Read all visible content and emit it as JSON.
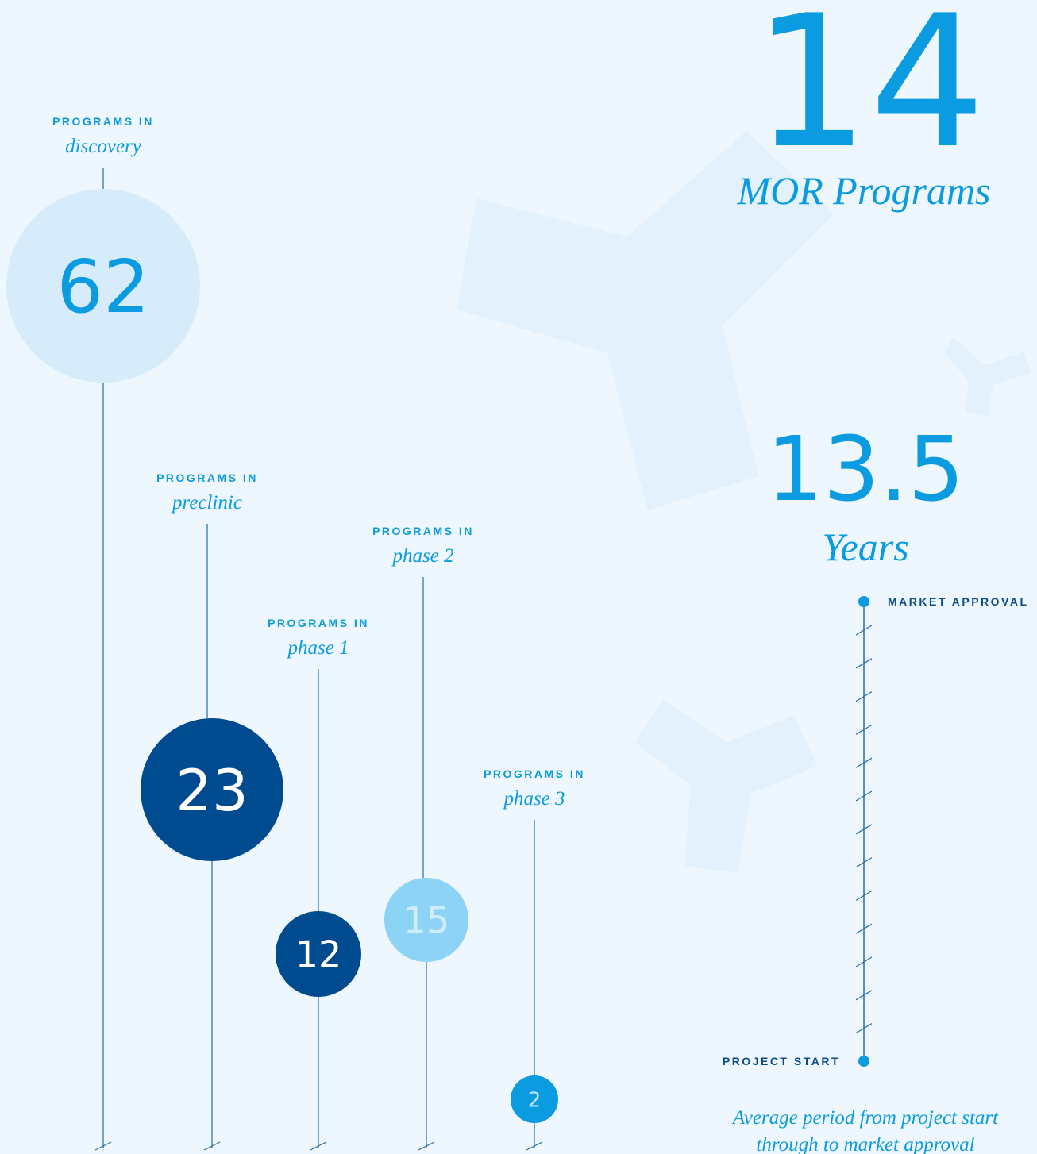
{
  "hero": {
    "count": 14,
    "count_label": "MOR Programs",
    "years": 13.5,
    "years_label": "Years"
  },
  "stages": [
    {
      "prefix": "PROGRAMS IN",
      "name": "discovery",
      "count": 62
    },
    {
      "prefix": "PROGRAMS IN",
      "name": "preclinic",
      "count": 23
    },
    {
      "prefix": "PROGRAMS IN",
      "name": "phase 1",
      "count": 12
    },
    {
      "prefix": "PROGRAMS IN",
      "name": "phase 2",
      "count": 15
    },
    {
      "prefix": "PROGRAMS IN",
      "name": "phase 3",
      "count": 2
    }
  ],
  "timeline": {
    "end": "MARKET APPROVAL",
    "start": "PROJECT START",
    "caption": [
      "Average period from project start",
      "through to market approval"
    ]
  }
}
